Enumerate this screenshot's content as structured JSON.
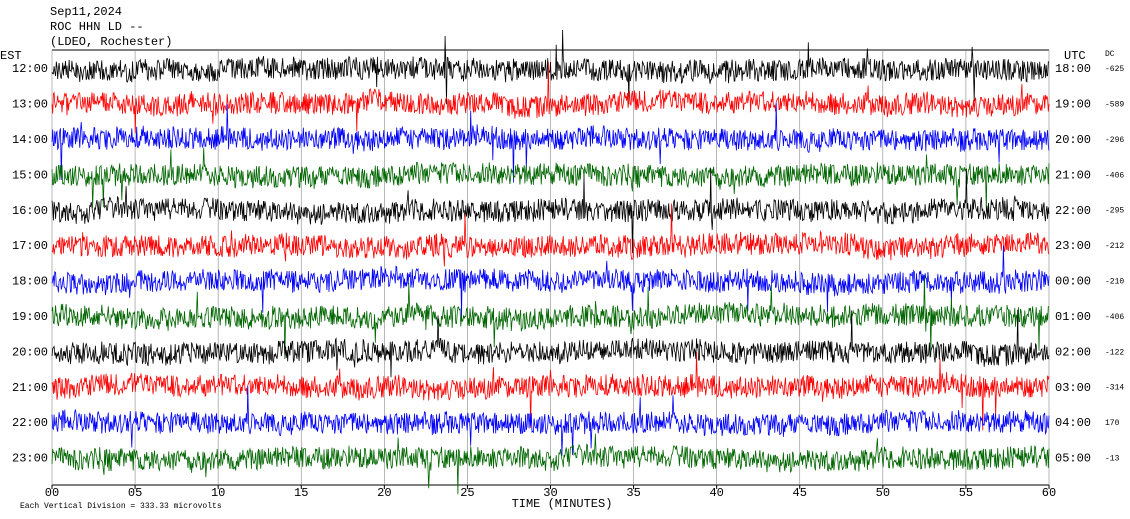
{
  "chart_data": {
    "type": "helicorder",
    "title": "Sep11,2024",
    "subtitle": "ROC HHN LD --",
    "station": "(LDEO, Rochester)",
    "left_axis_label": "EST",
    "right_axis_label": "UTC",
    "dc_label": "DC",
    "xlabel": "TIME (MINUTES)",
    "note": "Each Vertical Division =  333.33 microvolts",
    "xlim": [
      0,
      60
    ],
    "xticks": [
      {
        "value": 0,
        "label": "00"
      },
      {
        "value": 5,
        "label": "05"
      },
      10,
      15,
      20,
      25,
      30,
      35,
      40,
      45,
      50,
      55,
      60
    ],
    "grid": true,
    "rows": [
      {
        "est": "12:00",
        "utc": "18:00",
        "dc": -625,
        "color": "#000000"
      },
      {
        "est": "13:00",
        "utc": "19:00",
        "dc": -589,
        "color": "#ff0000"
      },
      {
        "est": "14:00",
        "utc": "20:00",
        "dc": -296,
        "color": "#0000ff"
      },
      {
        "est": "15:00",
        "utc": "21:00",
        "dc": -406,
        "color": "#006600"
      },
      {
        "est": "16:00",
        "utc": "22:00",
        "dc": -295,
        "color": "#000000"
      },
      {
        "est": "17:00",
        "utc": "23:00",
        "dc": -212,
        "color": "#ff0000"
      },
      {
        "est": "18:00",
        "utc": "00:00",
        "dc": -210,
        "color": "#0000ff"
      },
      {
        "est": "19:00",
        "utc": "01:00",
        "dc": -406,
        "color": "#006600"
      },
      {
        "est": "20:00",
        "utc": "02:00",
        "dc": -122,
        "color": "#000000"
      },
      {
        "est": "21:00",
        "utc": "03:00",
        "dc": -314,
        "color": "#ff0000"
      },
      {
        "est": "22:00",
        "utc": "04:00",
        "dc": 170,
        "color": "#0000ff"
      },
      {
        "est": "23:00",
        "utc": "05:00",
        "dc": -13,
        "color": "#006600"
      }
    ]
  }
}
